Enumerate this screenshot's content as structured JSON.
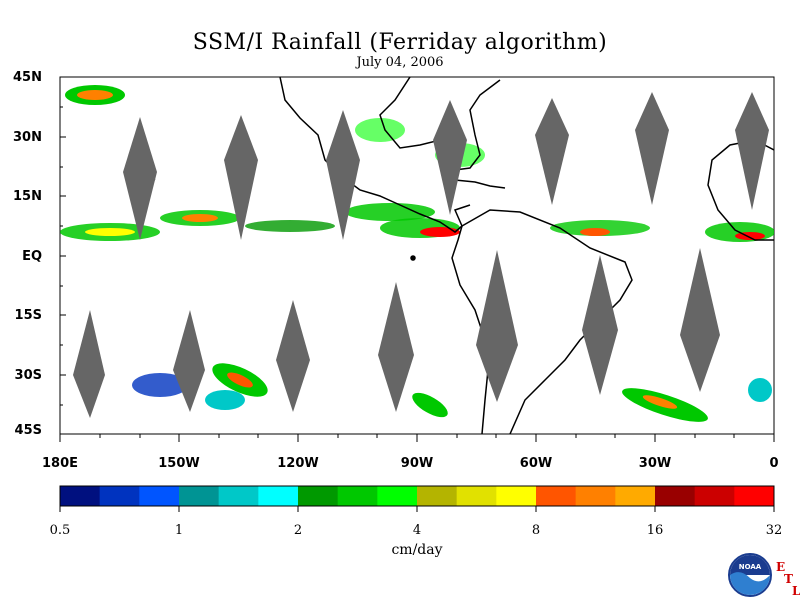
{
  "title": "SSM/I Rainfall (Ferriday algorithm)",
  "date": "July 04, 2006",
  "lat_labels": [
    "45N",
    "30N",
    "15N",
    "EQ",
    "15S",
    "30S",
    "45S"
  ],
  "lon_labels": [
    "180E",
    "150W",
    "120W",
    "90W",
    "60W",
    "30W",
    "0"
  ],
  "colorbar": {
    "colors": [
      "#00107f",
      "#0033bf",
      "#0055ff",
      "#009494",
      "#00c8c8",
      "#00ffff",
      "#009900",
      "#00c800",
      "#00ff00",
      "#b4b400",
      "#e1e100",
      "#ffff00",
      "#ff5500",
      "#ff8000",
      "#ffaa00",
      "#990000",
      "#cc0000",
      "#ff0000"
    ],
    "tick_labels": [
      "0.5",
      "1",
      "2",
      "4",
      "8",
      "16",
      "32"
    ],
    "unit": "cm/day"
  },
  "logo": {
    "text": "NOAA",
    "etl": [
      "E",
      "T",
      "L"
    ]
  }
}
